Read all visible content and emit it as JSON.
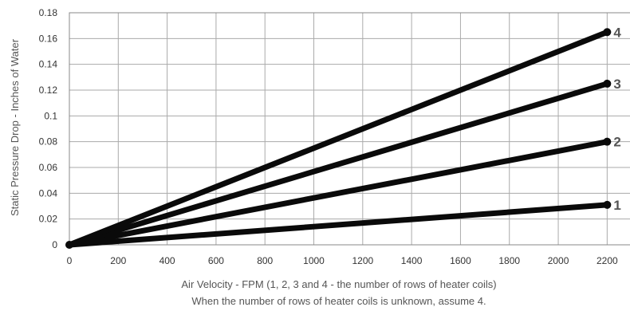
{
  "chart_data": {
    "type": "line",
    "title": "",
    "xlabel": "Air Velocity - FPM (1, 2, 3 and 4 - the number of rows of heater coils)",
    "note": "When the number of rows of heater coils is unknown, assume 4.",
    "ylabel": "Static Pressure Drop - Inches of Water",
    "xlim": [
      0,
      2300
    ],
    "ylim": [
      0,
      0.18
    ],
    "x_ticks": [
      0,
      200,
      400,
      600,
      800,
      1000,
      1200,
      1400,
      1600,
      1800,
      2000,
      2200
    ],
    "x_tick_labels": [
      "0",
      "200",
      "400",
      "600",
      "800",
      "1000",
      "1200",
      "1400",
      "1600",
      "1800",
      "2000",
      "2200"
    ],
    "y_ticks": [
      0,
      0.02,
      0.04,
      0.06,
      0.08,
      0.1,
      0.12,
      0.14,
      0.16,
      0.18
    ],
    "y_tick_labels": [
      "0",
      "0.02",
      "0.04",
      "0.06",
      "0.08",
      "0.1",
      "0.12",
      "0.14",
      "0.16",
      "0.18"
    ],
    "grid": true,
    "series": [
      {
        "name": "1",
        "x": [
          0,
          2200
        ],
        "values": [
          0,
          0.031
        ]
      },
      {
        "name": "2",
        "x": [
          0,
          2200
        ],
        "values": [
          0,
          0.08
        ]
      },
      {
        "name": "3",
        "x": [
          0,
          2200
        ],
        "values": [
          0,
          0.125
        ]
      },
      {
        "name": "4",
        "x": [
          0,
          2200
        ],
        "values": [
          0,
          0.165
        ]
      }
    ],
    "colors": {
      "line": "#0a0a0a",
      "grid": "#aaaaaa",
      "label": "#555555"
    }
  }
}
